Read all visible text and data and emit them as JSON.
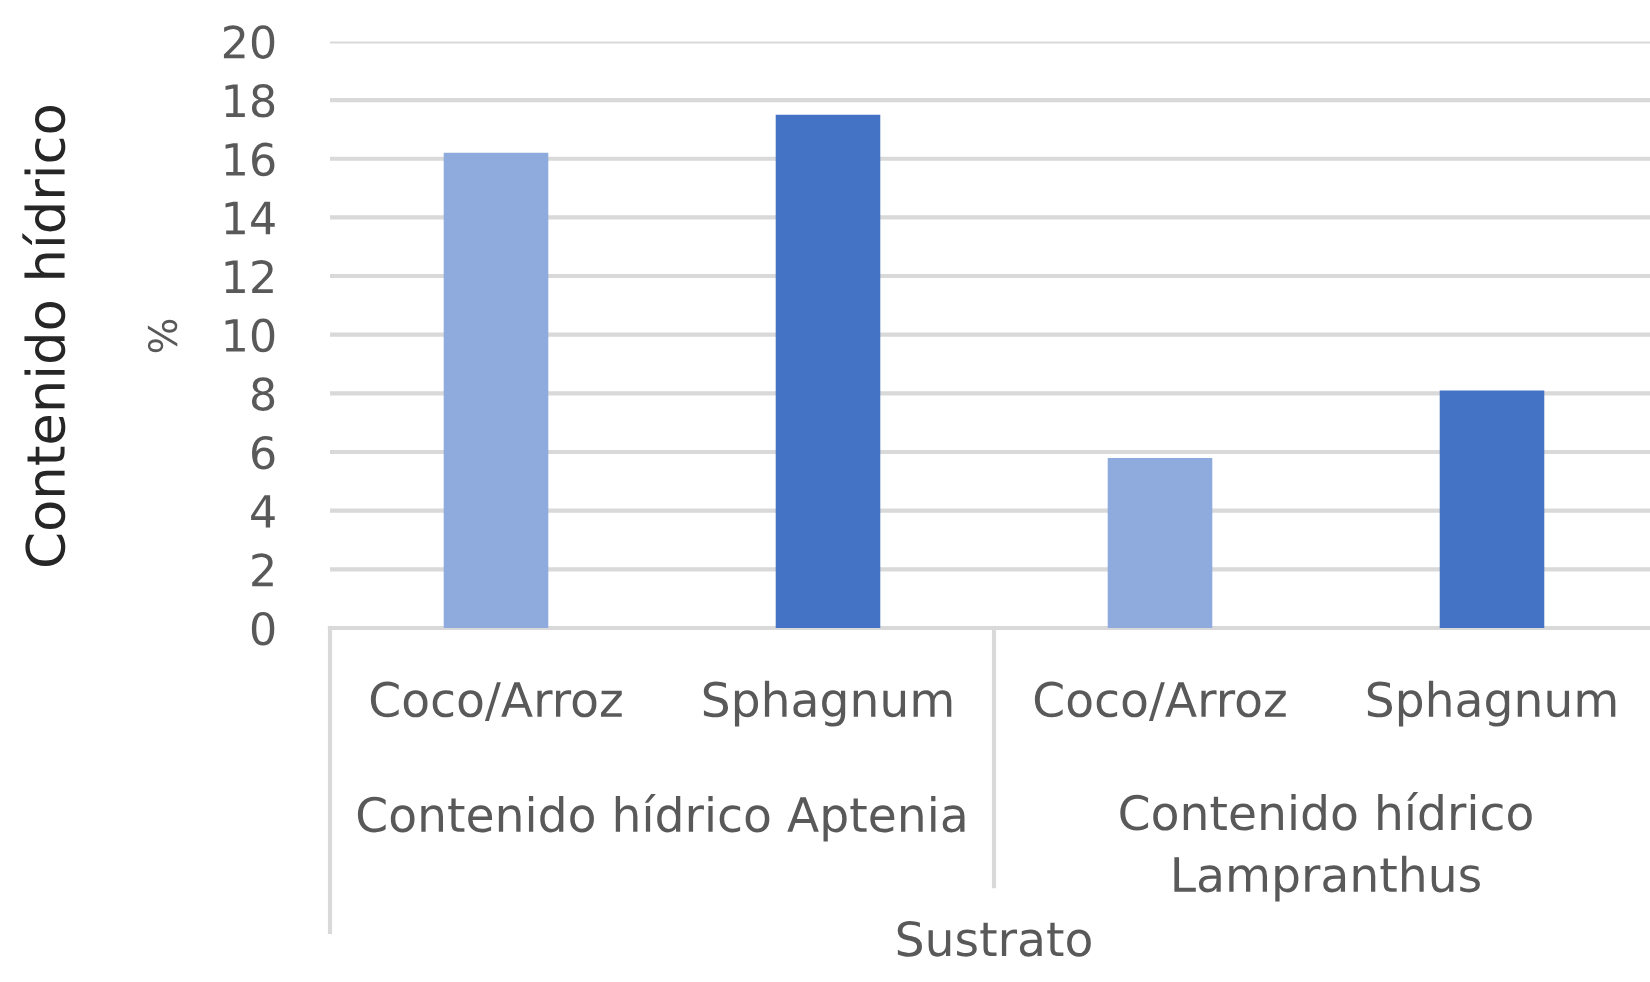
{
  "chart_data": {
    "type": "bar",
    "categories": [
      "Coco/Arroz",
      "Sphagnum",
      "Coco/Arroz",
      "Sphagnum"
    ],
    "values": [
      16.2,
      17.5,
      5.8,
      8.1
    ],
    "colors": [
      "#8faadc",
      "#4472c4",
      "#8faadc",
      "#4472c4"
    ],
    "ylabel": "Contenido hídrico\n%",
    "xlabel": "Sustrato",
    "annotations": [
      "Contenido hídrico Aptenia",
      "Contenido hídrico Lampranthus"
    ],
    "ylim": [
      0,
      20
    ],
    "yticks": [
      0,
      2,
      4,
      6,
      8,
      10,
      12,
      14,
      16,
      18,
      20
    ],
    "grid": "y"
  }
}
